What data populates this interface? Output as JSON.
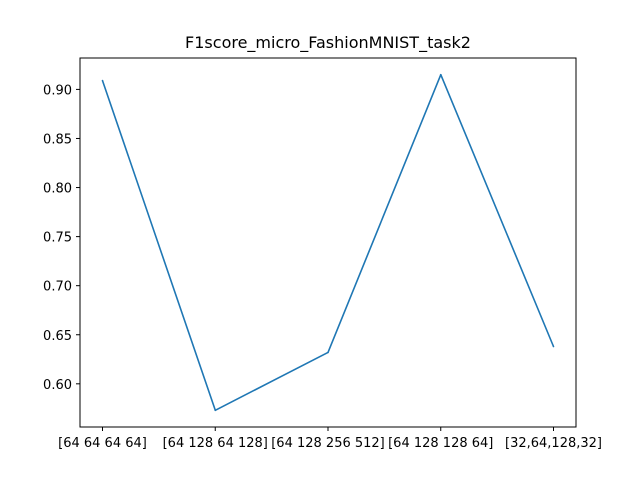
{
  "chart_data": {
    "type": "line",
    "title": "F1score_micro_FashionMNIST_task2",
    "xlabel": "",
    "ylabel": "",
    "categories": [
      "[64 64 64 64]",
      "[64 128 64 128]",
      "[64 128 256 512]",
      "[64 128 128 64]",
      "[32,64,128,32]"
    ],
    "series": [
      {
        "values": [
          0.909,
          0.573,
          0.632,
          0.915,
          0.638
        ]
      }
    ],
    "yticks": [
      "0.60",
      "0.65",
      "0.70",
      "0.75",
      "0.80",
      "0.85",
      "0.90"
    ],
    "ylim": [
      0.556,
      0.932
    ],
    "grid": false,
    "line_color": "#1f77b4"
  }
}
